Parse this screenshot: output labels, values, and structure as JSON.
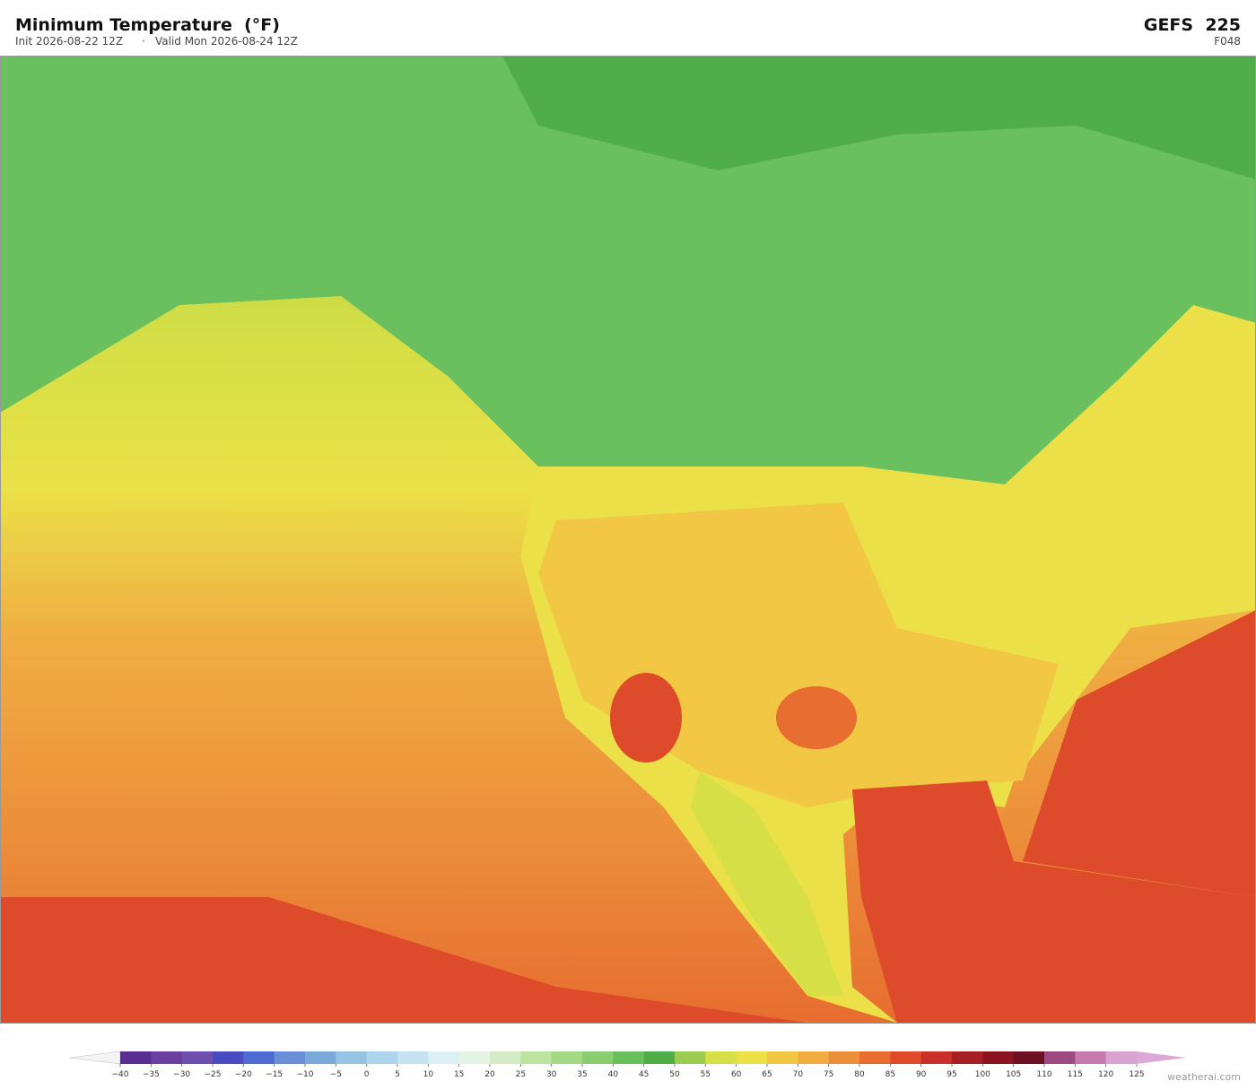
{
  "header": {
    "title": "Minimum Temperature  (°F)",
    "init": "Init 2026-08-22 12Z",
    "separator": "·",
    "valid": "Valid Mon 2026-08-24 12Z",
    "model": "GEFS  225",
    "forecast_hour": "F048"
  },
  "colorbar": {
    "levels": [
      {
        "value": -40,
        "label": "−40"
      },
      {
        "value": -35,
        "label": "−35"
      },
      {
        "value": -30,
        "label": "−30"
      },
      {
        "value": -25,
        "label": "−25"
      },
      {
        "value": -20,
        "label": "−20"
      },
      {
        "value": -15,
        "label": "−15"
      },
      {
        "value": -10,
        "label": "−10"
      },
      {
        "value": -5,
        "label": "−5"
      },
      0,
      5,
      10,
      15,
      20,
      25,
      30,
      35,
      40,
      45,
      50,
      55,
      60,
      65,
      70,
      75,
      80,
      85,
      90,
      95,
      100,
      105,
      110,
      115,
      120,
      125
    ],
    "colors": [
      "#5a2d91",
      "#6a3fa0",
      "#6e4fb0",
      "#4a4bc0",
      "#4d6bd0",
      "#6a8fd6",
      "#7aaad9",
      "#96c3e4",
      "#acd4ec",
      "#c4e2f0",
      "#dceff3",
      "#e4f4e4",
      "#d4ecc6",
      "#bde3a0",
      "#a3d985",
      "#8acc72",
      "#6abf5e",
      "#4fae4a",
      "#9ccc52",
      "#d6df45",
      "#ebe048",
      "#f2c744",
      "#f0ae42",
      "#ec8f3a",
      "#e76d30",
      "#dd4b2b",
      "#c8302a",
      "#a51f24",
      "#8a1520",
      "#6d1024",
      "#9c4a7f",
      "#c47aae",
      "#d9a3cf"
    ],
    "under_color": "#f4f4f4",
    "over_color": "#dca8d8"
  },
  "footer": {
    "watermark": "weatherai.com"
  }
}
